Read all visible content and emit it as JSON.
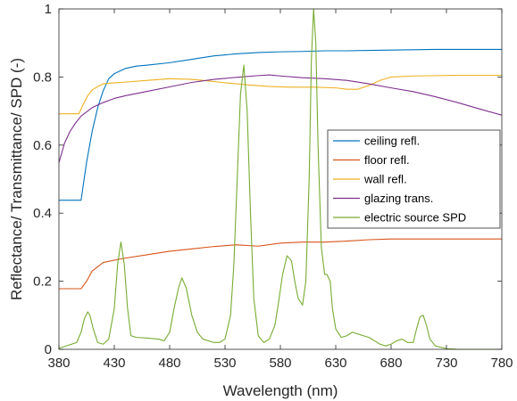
{
  "chart_data": {
    "type": "line",
    "title": "",
    "xlabel": "Wavelength (nm)",
    "ylabel": "Reflectance/ Transmittance/ SPD (-)",
    "xlim": [
      380,
      780
    ],
    "ylim": [
      0,
      1
    ],
    "xticks": [
      380,
      430,
      480,
      530,
      580,
      630,
      680,
      730,
      780
    ],
    "xtick_labels": [
      "380",
      "430",
      "480",
      "530",
      "580",
      "630",
      "680",
      "730",
      "780"
    ],
    "yticks": [
      0,
      0.2,
      0.4,
      0.6,
      0.8,
      1
    ],
    "ytick_labels": [
      "0",
      "0.2",
      "0.4",
      "0.6",
      "0.8",
      "1"
    ],
    "grid": false,
    "legend_position": "right",
    "series": [
      {
        "name": "ceiling refl.",
        "color": "#0072BD",
        "x": [
          380,
          400,
          405,
          410,
          415,
          420,
          425,
          430,
          440,
          450,
          460,
          480,
          500,
          520,
          540,
          560,
          580,
          600,
          620,
          640,
          660,
          680,
          700,
          720,
          740,
          760,
          780
        ],
        "y": [
          0.438,
          0.438,
          0.55,
          0.64,
          0.71,
          0.76,
          0.795,
          0.81,
          0.825,
          0.832,
          0.835,
          0.842,
          0.852,
          0.862,
          0.868,
          0.872,
          0.874,
          0.875,
          0.877,
          0.877,
          0.878,
          0.879,
          0.88,
          0.881,
          0.881,
          0.881,
          0.881
        ]
      },
      {
        "name": "floor refl.",
        "color": "#D95319",
        "x": [
          380,
          400,
          405,
          410,
          420,
          430,
          440,
          460,
          480,
          500,
          520,
          540,
          560,
          580,
          600,
          620,
          640,
          660,
          680,
          700,
          720,
          740,
          760,
          780
        ],
        "y": [
          0.178,
          0.178,
          0.2,
          0.23,
          0.255,
          0.262,
          0.268,
          0.278,
          0.288,
          0.295,
          0.302,
          0.307,
          0.303,
          0.312,
          0.315,
          0.315,
          0.318,
          0.322,
          0.324,
          0.324,
          0.324,
          0.324,
          0.324,
          0.324
        ]
      },
      {
        "name": "wall refl.",
        "color": "#EDB120",
        "x": [
          380,
          398,
          402,
          406,
          410,
          415,
          420,
          430,
          440,
          460,
          480,
          500,
          510,
          530,
          550,
          570,
          590,
          610,
          630,
          640,
          650,
          660,
          670,
          680,
          700,
          720,
          740,
          760,
          780
        ],
        "y": [
          0.692,
          0.692,
          0.72,
          0.745,
          0.762,
          0.772,
          0.78,
          0.783,
          0.785,
          0.79,
          0.795,
          0.793,
          0.79,
          0.783,
          0.777,
          0.772,
          0.77,
          0.77,
          0.768,
          0.764,
          0.764,
          0.775,
          0.79,
          0.8,
          0.803,
          0.804,
          0.805,
          0.805,
          0.805
        ]
      },
      {
        "name": "glazing trans.",
        "color": "#7E2F8E",
        "x": [
          380,
          385,
          390,
          395,
          400,
          410,
          420,
          430,
          440,
          460,
          480,
          500,
          520,
          540,
          560,
          570,
          580,
          600,
          620,
          640,
          660,
          680,
          700,
          720,
          740,
          760,
          780
        ],
        "y": [
          0.548,
          0.605,
          0.64,
          0.665,
          0.685,
          0.71,
          0.725,
          0.737,
          0.745,
          0.758,
          0.771,
          0.784,
          0.793,
          0.799,
          0.804,
          0.806,
          0.803,
          0.798,
          0.795,
          0.79,
          0.78,
          0.768,
          0.757,
          0.742,
          0.725,
          0.706,
          0.688
        ]
      },
      {
        "name": "electric source SPD",
        "color": "#77AC30",
        "x": [
          380,
          396,
          400,
          403,
          406,
          408,
          411,
          415,
          420,
          425,
          430,
          433,
          436,
          439,
          442,
          445,
          450,
          460,
          470,
          475,
          480,
          484,
          488,
          491,
          495,
          500,
          505,
          510,
          520,
          525,
          530,
          535,
          538,
          541,
          544,
          547,
          550,
          553,
          556,
          560,
          565,
          570,
          575,
          578,
          582,
          586,
          590,
          593,
          596,
          600,
          603,
          606,
          608,
          610,
          612,
          614,
          617,
          620,
          622,
          625,
          627,
          630,
          635,
          640,
          645,
          650,
          655,
          660,
          665,
          670,
          675,
          680,
          685,
          690,
          695,
          700,
          703,
          706,
          709,
          712,
          715,
          720,
          730,
          740,
          750,
          760,
          780
        ],
        "y": [
          0.003,
          0.02,
          0.05,
          0.09,
          0.11,
          0.1,
          0.06,
          0.02,
          0.015,
          0.03,
          0.12,
          0.25,
          0.315,
          0.25,
          0.12,
          0.04,
          0.035,
          0.033,
          0.03,
          0.025,
          0.05,
          0.12,
          0.18,
          0.21,
          0.18,
          0.1,
          0.05,
          0.03,
          0.02,
          0.02,
          0.03,
          0.1,
          0.25,
          0.5,
          0.75,
          0.835,
          0.7,
          0.4,
          0.15,
          0.04,
          0.02,
          0.03,
          0.07,
          0.13,
          0.22,
          0.275,
          0.26,
          0.2,
          0.15,
          0.13,
          0.2,
          0.5,
          0.85,
          1.0,
          0.9,
          0.6,
          0.3,
          0.22,
          0.22,
          0.2,
          0.12,
          0.06,
          0.035,
          0.04,
          0.05,
          0.045,
          0.04,
          0.035,
          0.025,
          0.015,
          0.01,
          0.015,
          0.025,
          0.03,
          0.02,
          0.02,
          0.06,
          0.095,
          0.1,
          0.07,
          0.03,
          0.01,
          0.002,
          0.0,
          0.0,
          0.0,
          0.0
        ]
      }
    ]
  }
}
